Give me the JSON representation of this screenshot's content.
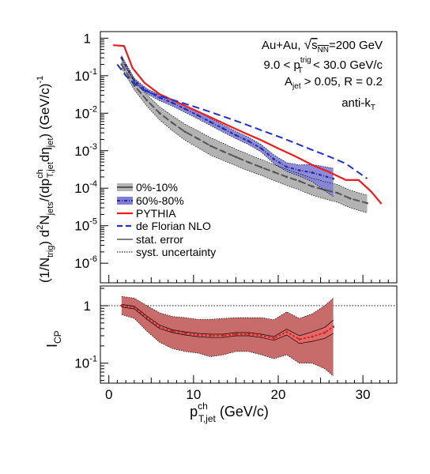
{
  "chart_data": [
    {
      "type": "line",
      "panel": "top",
      "ylabel_parts": {
        "a": "(1/N",
        "a_sub": "trig",
        "b": ") d",
        "b_sup": "2",
        "c": "N",
        "c_sub": "jets",
        "d": "/(dp",
        "d_sup": "ch",
        "d_sub": "T,jet",
        "e": "dη",
        "e_sub": "jet",
        "f": ")  (GeV/c)",
        "f_sup": "-1"
      },
      "yscale": "log",
      "ylim": [
        3e-07,
        1.5
      ],
      "xlim": [
        -1,
        34
      ],
      "y_ticks": [
        {
          "v": 1,
          "mant": "1",
          "exp": ""
        },
        {
          "v": 0.1,
          "mant": "10",
          "exp": "-1"
        },
        {
          "v": 0.01,
          "mant": "10",
          "exp": "-2"
        },
        {
          "v": 0.001,
          "mant": "10",
          "exp": "-3"
        },
        {
          "v": 0.0001,
          "mant": "10",
          "exp": "-4"
        },
        {
          "v": 1e-05,
          "mant": "10",
          "exp": "-5"
        },
        {
          "v": 1e-06,
          "mant": "10",
          "exp": "-6"
        }
      ],
      "annotations": {
        "l1_a": "Au+Au, ",
        "l1_root": "s",
        "l1_sub": "NN",
        "l1_b": "=200 GeV",
        "l2_a": "9.0 < p",
        "l2_sup": "trig",
        "l2_sub": "T",
        "l2_b": " < 30.0 GeV/c",
        "l3_a": "A",
        "l3_sub": "jet",
        "l3_b": " > 0.05, R = 0.2",
        "l4_a": "anti-k",
        "l4_sub": "T"
      },
      "legend": {
        "placement": "middle-left",
        "entries": [
          "0%-10%",
          "60%-80%",
          "PYTHIA",
          "de Florian NLO",
          "stat. error",
          "syst. uncertainty"
        ]
      },
      "series": [
        {
          "name": "0%-10%",
          "color": "#555555",
          "band_color": "#b3b3b3",
          "x": [
            1.5,
            3,
            4.5,
            6,
            7.5,
            9,
            10.5,
            12,
            13.5,
            15,
            16.5,
            18,
            19.5,
            21,
            22.5,
            24,
            25.5,
            27,
            28.5,
            30.5
          ],
          "y": [
            0.2,
            0.055,
            0.022,
            0.01,
            0.0055,
            0.0032,
            0.0021,
            0.00135,
            0.00095,
            0.00068,
            0.00049,
            0.00036,
            0.00027,
            0.0002,
            0.000155,
            0.000112,
            9e-05,
            7.5e-05,
            5.3e-05,
            4e-05
          ],
          "syst_lo": [
            0.16,
            0.042,
            0.0155,
            0.0066,
            0.0034,
            0.0019,
            0.00121,
            0.00076,
            0.00055,
            0.0004,
            0.00029,
            0.00022,
            0.00016,
            0.000118,
            9e-05,
            6.5e-05,
            5.2e-05,
            4.2e-05,
            3e-05,
            2.2e-05
          ],
          "syst_hi": [
            0.24,
            0.072,
            0.031,
            0.0148,
            0.0085,
            0.0051,
            0.0034,
            0.00225,
            0.00157,
            0.0011,
            0.0008,
            0.00058,
            0.00043,
            0.00032,
            0.000245,
            0.000185,
            0.00015,
            0.000125,
            8.8e-05,
            6.5e-05
          ]
        },
        {
          "name": "60%-80%",
          "color": "#2a2a9a",
          "band_color": "#7f7fd6",
          "x": [
            1.5,
            3,
            4.5,
            6,
            7.5,
            9,
            10.5,
            12,
            13.5,
            15,
            16.5,
            18,
            19.5,
            21,
            22.5,
            24,
            26.5
          ],
          "y": [
            0.3,
            0.075,
            0.039,
            0.026,
            0.019,
            0.013,
            0.0088,
            0.0058,
            0.0039,
            0.0026,
            0.0018,
            0.00115,
            0.00059,
            0.00037,
            0.0003,
            0.00026,
            0.00018
          ],
          "syst_lo": [
            0.27,
            0.066,
            0.033,
            0.0215,
            0.0155,
            0.0105,
            0.0071,
            0.0047,
            0.0031,
            0.0021,
            0.00145,
            0.00092,
            0.00045,
            0.00028,
            0.00021,
            0.00015,
            6e-05
          ],
          "syst_hi": [
            0.34,
            0.085,
            0.045,
            0.031,
            0.023,
            0.016,
            0.011,
            0.0073,
            0.0049,
            0.0033,
            0.0023,
            0.00145,
            0.00077,
            0.00048,
            0.00042,
            0.00043,
            0.00034
          ]
        },
        {
          "name": "PYTHIA",
          "color": "#ee1c1c",
          "x": [
            0.5,
            1.8,
            2.8,
            4.2,
            6,
            8,
            10,
            12,
            14,
            16,
            18,
            20,
            22,
            24,
            26,
            28,
            29.5,
            31,
            32.2
          ],
          "y": [
            0.65,
            0.62,
            0.16,
            0.065,
            0.032,
            0.02,
            0.0125,
            0.0078,
            0.0048,
            0.003,
            0.0019,
            0.00115,
            0.00071,
            0.00042,
            0.00027,
            0.000165,
            0.000165,
            8e-05,
            3.8e-05
          ]
        },
        {
          "name": "de Florian NLO",
          "color": "#1f2fd0",
          "x": [
            1,
            2,
            3,
            4,
            5,
            6,
            8,
            10,
            12,
            14,
            16,
            18,
            20,
            22,
            24,
            26,
            28,
            30.5
          ],
          "y": [
            0.2,
            0.1,
            0.062,
            0.043,
            0.034,
            0.029,
            0.021,
            0.0152,
            0.0108,
            0.0075,
            0.0052,
            0.0035,
            0.0024,
            0.0016,
            0.00105,
            0.0007,
            0.00045,
            0.00018
          ]
        }
      ]
    },
    {
      "type": "line",
      "panel": "bottom",
      "ylabel": "I",
      "ylabel_sub": "CP",
      "yscale": "log",
      "ylim": [
        0.045,
        2.2
      ],
      "xlim": [
        -1,
        34
      ],
      "xlabel_main": "p",
      "xlabel_sup": "ch",
      "xlabel_sub": "T,jet",
      "xlabel_unit": "  (GeV/c)",
      "x_ticks": [
        0,
        10,
        20,
        30
      ],
      "y_ticks": [
        {
          "v": 1,
          "mant": "1",
          "exp": ""
        },
        {
          "v": 0.1,
          "mant": "10",
          "exp": "-1"
        }
      ],
      "reference_line": 1,
      "series": [
        {
          "name": "I_CP",
          "color": "#cc2222",
          "band_color": "#c76b6b",
          "x": [
            1.5,
            3,
            4.5,
            6,
            7.5,
            9,
            10.5,
            12,
            13.5,
            15,
            16.5,
            18,
            19.5,
            21,
            22.5,
            24,
            25.5,
            26.5
          ],
          "y": [
            1.0,
            0.93,
            0.62,
            0.43,
            0.36,
            0.33,
            0.31,
            0.3,
            0.3,
            0.32,
            0.32,
            0.3,
            0.27,
            0.35,
            0.26,
            0.29,
            0.34,
            0.43
          ],
          "stat_lo": [
            0.95,
            0.88,
            0.58,
            0.4,
            0.34,
            0.31,
            0.29,
            0.28,
            0.28,
            0.3,
            0.3,
            0.28,
            0.25,
            0.31,
            0.22,
            0.24,
            0.27,
            0.33
          ],
          "stat_hi": [
            1.05,
            0.98,
            0.66,
            0.46,
            0.38,
            0.35,
            0.33,
            0.32,
            0.32,
            0.34,
            0.34,
            0.32,
            0.29,
            0.39,
            0.3,
            0.35,
            0.42,
            0.56
          ],
          "syst_lo": [
            0.7,
            0.6,
            0.36,
            0.23,
            0.18,
            0.16,
            0.15,
            0.13,
            0.14,
            0.16,
            0.16,
            0.14,
            0.12,
            0.14,
            0.1,
            0.1,
            0.08,
            0.06
          ],
          "syst_hi": [
            1.45,
            1.35,
            1.0,
            0.75,
            0.65,
            0.62,
            0.58,
            0.58,
            0.6,
            0.62,
            0.62,
            0.62,
            0.57,
            0.78,
            0.6,
            0.72,
            1.0,
            1.35
          ]
        }
      ]
    }
  ]
}
